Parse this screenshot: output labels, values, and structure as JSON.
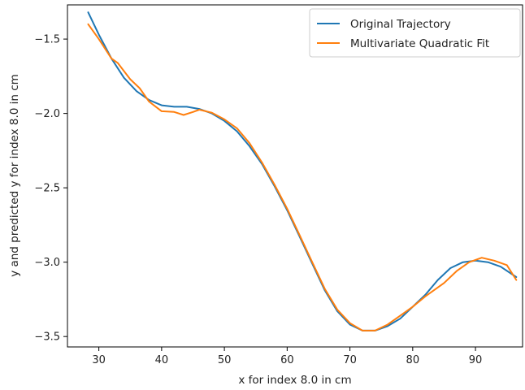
{
  "chart_data": {
    "type": "line",
    "title": "",
    "xlabel": "x for index 8.0 in cm",
    "ylabel": "y and predicted y for index 8.0 in cm",
    "xlim": [
      25,
      97.5
    ],
    "ylim": [
      -3.57,
      -1.27
    ],
    "xticks": [
      30,
      40,
      50,
      60,
      70,
      80,
      90
    ],
    "yticks": [
      -1.5,
      -2.0,
      -2.5,
      -3.0,
      -3.5
    ],
    "xtick_labels": [
      "30",
      "40",
      "50",
      "60",
      "70",
      "80",
      "90"
    ],
    "ytick_labels": [
      "−1.5",
      "−2.0",
      "−2.5",
      "−3.0",
      "−3.5"
    ],
    "grid": false,
    "legend_position": "top-right",
    "series": [
      {
        "name": "Original Trajectory",
        "color": "#1f77b4",
        "x": [
          28.3,
          30.0,
          32.0,
          34.0,
          36.0,
          38.0,
          40.0,
          42.0,
          44.0,
          46.0,
          48.0,
          50.0,
          52.0,
          54.0,
          56.0,
          58.0,
          60.0,
          62.0,
          64.0,
          66.0,
          68.0,
          70.0,
          72.0,
          74.0,
          76.0,
          78.0,
          80.0,
          82.0,
          84.0,
          86.0,
          88.0,
          90.0,
          92.0,
          94.0,
          96.5
        ],
        "y": [
          -1.32,
          -1.47,
          -1.63,
          -1.76,
          -1.85,
          -1.91,
          -1.945,
          -1.955,
          -1.955,
          -1.97,
          -2.0,
          -2.05,
          -2.12,
          -2.22,
          -2.34,
          -2.49,
          -2.65,
          -2.83,
          -3.01,
          -3.19,
          -3.33,
          -3.42,
          -3.46,
          -3.46,
          -3.43,
          -3.38,
          -3.3,
          -3.22,
          -3.12,
          -3.04,
          -3.0,
          -2.99,
          -3.0,
          -3.03,
          -3.1
        ]
      },
      {
        "name": "Multivariate Quadratic Fit",
        "color": "#ff7f0e",
        "x": [
          28.3,
          30.0,
          32.0,
          33.0,
          35.0,
          36.5,
          38.0,
          40.0,
          42.0,
          43.5,
          45.0,
          46.0,
          48.0,
          50.0,
          52.0,
          54.0,
          56.0,
          58.0,
          60.0,
          62.0,
          64.0,
          66.0,
          68.0,
          70.0,
          72.0,
          74.0,
          76.0,
          78.0,
          80.0,
          82.0,
          84.0,
          85.0,
          87.0,
          89.0,
          91.0,
          93.0,
          95.0,
          96.5
        ],
        "y": [
          -1.4,
          -1.5,
          -1.63,
          -1.66,
          -1.77,
          -1.83,
          -1.92,
          -1.985,
          -1.99,
          -2.01,
          -1.99,
          -1.975,
          -1.995,
          -2.04,
          -2.1,
          -2.2,
          -2.33,
          -2.48,
          -2.64,
          -2.82,
          -3.0,
          -3.18,
          -3.32,
          -3.41,
          -3.46,
          -3.46,
          -3.42,
          -3.36,
          -3.3,
          -3.23,
          -3.17,
          -3.14,
          -3.06,
          -3.0,
          -2.97,
          -2.99,
          -3.02,
          -3.12
        ]
      }
    ]
  }
}
